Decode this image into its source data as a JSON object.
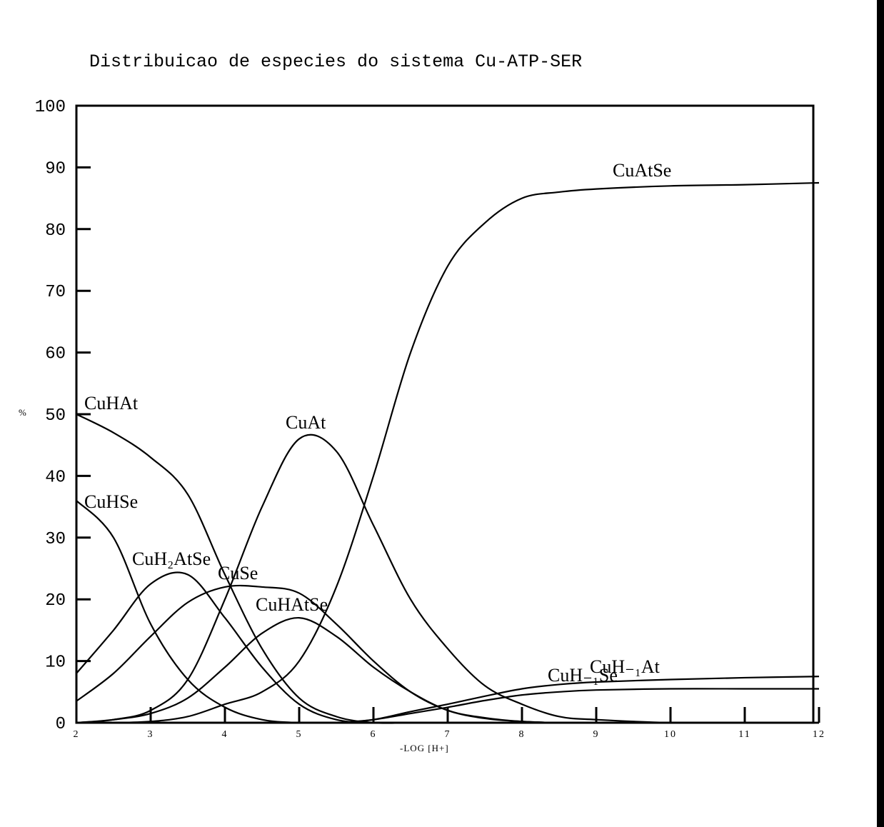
{
  "chart_data": {
    "type": "line",
    "title": "Distribuicao de especies do sistema Cu-ATP-SER",
    "xlabel": "-LOG [H+]",
    "ylabel": "%",
    "xlim": [
      2,
      12
    ],
    "ylim": [
      0,
      100
    ],
    "xticks": [
      "2",
      "3",
      "4",
      "5",
      "6",
      "7",
      "8",
      "9",
      "10",
      "11",
      "12"
    ],
    "yticks": [
      "0",
      "10",
      "20",
      "30",
      "40",
      "50",
      "60",
      "70",
      "80",
      "90",
      "100"
    ],
    "grid": false,
    "x": [
      2,
      2.5,
      3,
      3.5,
      4,
      4.5,
      5,
      5.5,
      6,
      6.5,
      7,
      7.5,
      8,
      8.5,
      9,
      10,
      11,
      12
    ],
    "series": [
      {
        "name": "CuHAt",
        "values": [
          50,
          47,
          43,
          37,
          24,
          12,
          4,
          1,
          0,
          0,
          0,
          0,
          0,
          0,
          0,
          0,
          0,
          0
        ]
      },
      {
        "name": "CuHSe",
        "values": [
          36,
          30,
          16,
          7,
          2.5,
          0.5,
          0,
          0,
          0,
          0,
          0,
          0,
          0,
          0,
          0,
          0,
          0,
          0
        ]
      },
      {
        "name": "CuH₂AtSe",
        "values": [
          8,
          15,
          22.5,
          24,
          17,
          9,
          3,
          0.5,
          0,
          0,
          0,
          0,
          0,
          0,
          0,
          0,
          0,
          0
        ]
      },
      {
        "name": "CuSe",
        "values": [
          3.5,
          8,
          14,
          19.5,
          22,
          22,
          21,
          16,
          10,
          5,
          2,
          0.7,
          0.2,
          0,
          0,
          0,
          0,
          0
        ]
      },
      {
        "name": "CuHAtSe",
        "values": [
          0,
          0.5,
          1.5,
          4,
          9,
          14.5,
          17,
          14,
          9,
          5,
          2,
          0.8,
          0.2,
          0,
          0,
          0,
          0,
          0
        ]
      },
      {
        "name": "CuAt",
        "values": [
          0,
          0.5,
          2,
          7,
          20,
          35,
          46,
          44,
          32,
          20,
          12,
          6,
          3,
          1,
          0.5,
          0,
          0,
          0
        ]
      },
      {
        "name": "CuAtSe",
        "values": [
          0,
          0,
          0.2,
          1,
          3,
          5,
          10,
          22,
          40,
          60,
          74,
          81,
          85,
          86,
          86.5,
          87,
          87.2,
          87.5
        ]
      },
      {
        "name": "CuH₋₁At",
        "values": [
          0,
          0,
          0,
          0,
          0,
          0,
          0,
          0,
          0.5,
          1.8,
          3,
          4.3,
          5.5,
          6.2,
          6.6,
          7,
          7.3,
          7.5
        ]
      },
      {
        "name": "CuH₋₁Se",
        "values": [
          0,
          0,
          0,
          0,
          0,
          0,
          0,
          0,
          0.5,
          1.5,
          2.5,
          3.6,
          4.5,
          5,
          5.3,
          5.5,
          5.5,
          5.5
        ]
      }
    ]
  }
}
